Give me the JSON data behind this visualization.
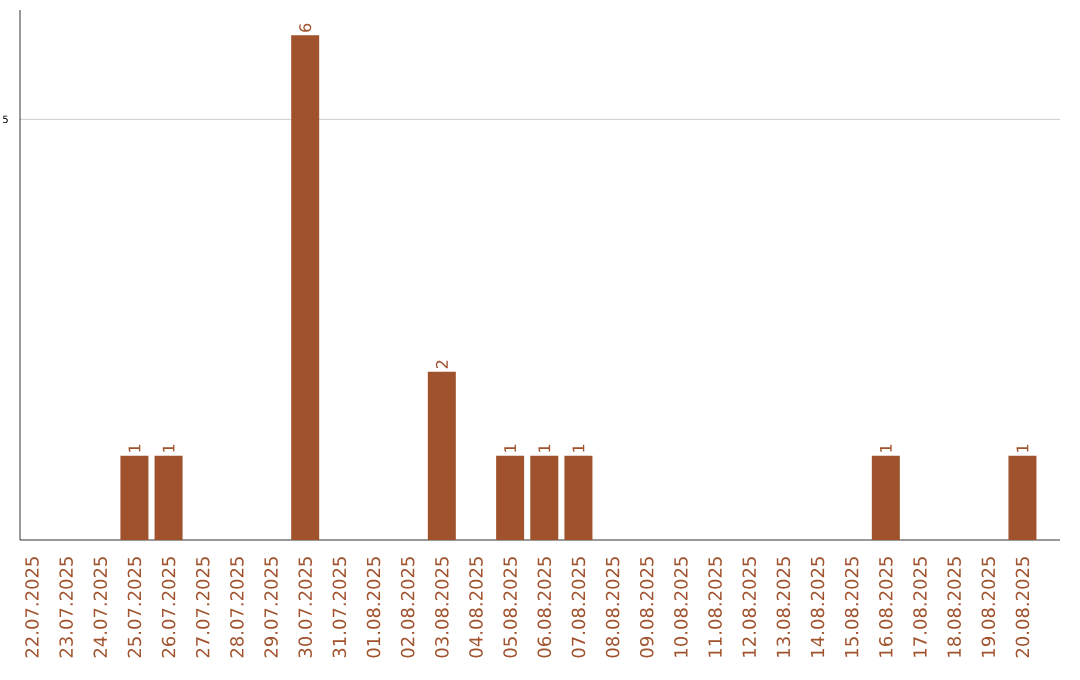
{
  "chart_data": {
    "type": "bar",
    "categories": [
      "22.07.2025",
      "23.07.2025",
      "24.07.2025",
      "25.07.2025",
      "26.07.2025",
      "27.07.2025",
      "28.07.2025",
      "29.07.2025",
      "30.07.2025",
      "31.07.2025",
      "01.08.2025",
      "02.08.2025",
      "03.08.2025",
      "04.08.2025",
      "05.08.2025",
      "06.08.2025",
      "07.08.2025",
      "08.08.2025",
      "09.08.2025",
      "10.08.2025",
      "11.08.2025",
      "12.08.2025",
      "13.08.2025",
      "14.08.2025",
      "15.08.2025",
      "16.08.2025",
      "17.08.2025",
      "18.08.2025",
      "19.08.2025",
      "20.08.2025"
    ],
    "values": [
      0,
      0,
      0,
      1,
      1,
      0,
      0,
      0,
      6,
      0,
      0,
      0,
      2,
      0,
      1,
      1,
      1,
      0,
      0,
      0,
      0,
      0,
      0,
      0,
      0,
      1,
      0,
      0,
      0,
      1
    ],
    "value_labels": [
      null,
      null,
      null,
      "1",
      "1",
      null,
      null,
      null,
      "6",
      null,
      null,
      null,
      "2",
      null,
      "1",
      "1",
      "1",
      null,
      null,
      null,
      null,
      null,
      null,
      null,
      null,
      "1",
      null,
      null,
      null,
      "1"
    ],
    "color": "#a0522d",
    "ylim": [
      0,
      6.3
    ],
    "yticks": [
      5
    ],
    "grid": "y"
  }
}
